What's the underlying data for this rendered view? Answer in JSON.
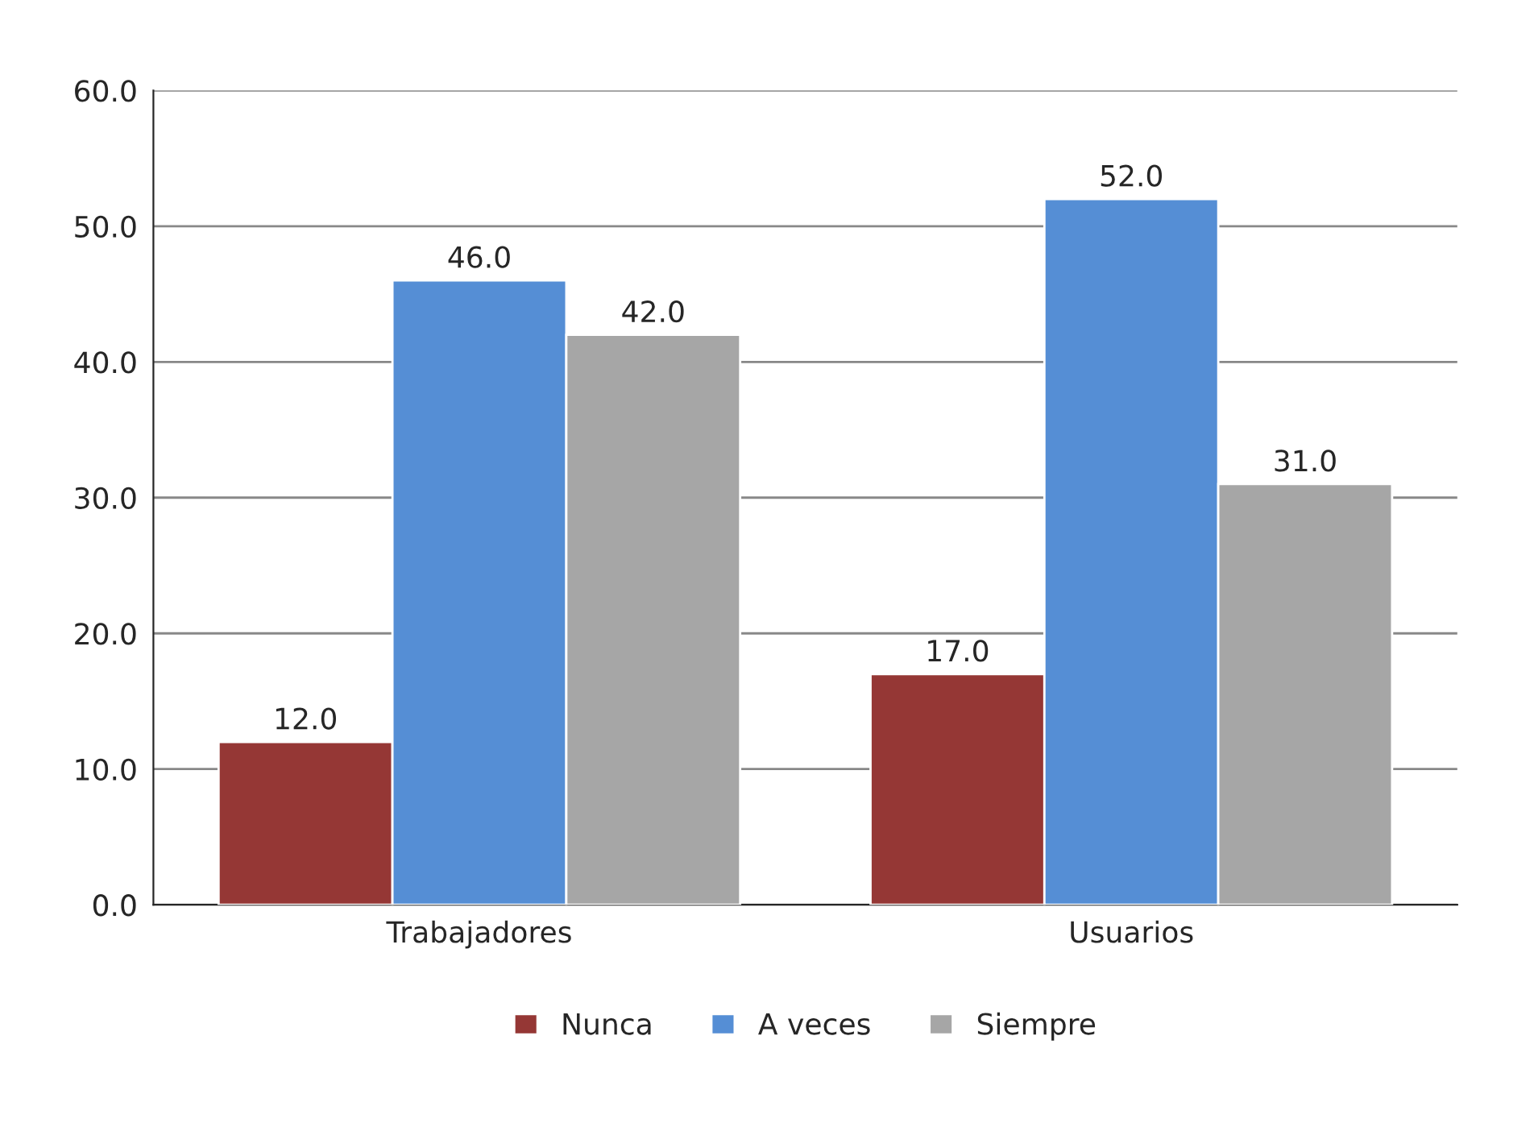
{
  "chart_data": {
    "type": "bar",
    "categories": [
      "Trabajadores",
      "Usuarios"
    ],
    "series": [
      {
        "name": "Nunca",
        "color": "#953735",
        "values": [
          12,
          17
        ],
        "value_labels": [
          "12.0",
          "17.0"
        ]
      },
      {
        "name": "A veces",
        "color": "#558ed5",
        "values": [
          46,
          52
        ],
        "value_labels": [
          "46.0",
          "52.0"
        ]
      },
      {
        "name": "Siempre",
        "color": "#a6a6a6",
        "values": [
          42,
          31
        ],
        "value_labels": [
          "42.0",
          "31.0"
        ]
      }
    ],
    "ylim": [
      0,
      60
    ],
    "yticks": [
      {
        "value": 0,
        "label": "0.0"
      },
      {
        "value": 10,
        "label": "10.0"
      },
      {
        "value": 20,
        "label": "20.0"
      },
      {
        "value": 30,
        "label": "30.0"
      },
      {
        "value": 40,
        "label": "40.0"
      },
      {
        "value": 50,
        "label": "50.0"
      },
      {
        "value": 60,
        "label": "60.0"
      }
    ],
    "grid": "y",
    "legend": "bottom"
  }
}
